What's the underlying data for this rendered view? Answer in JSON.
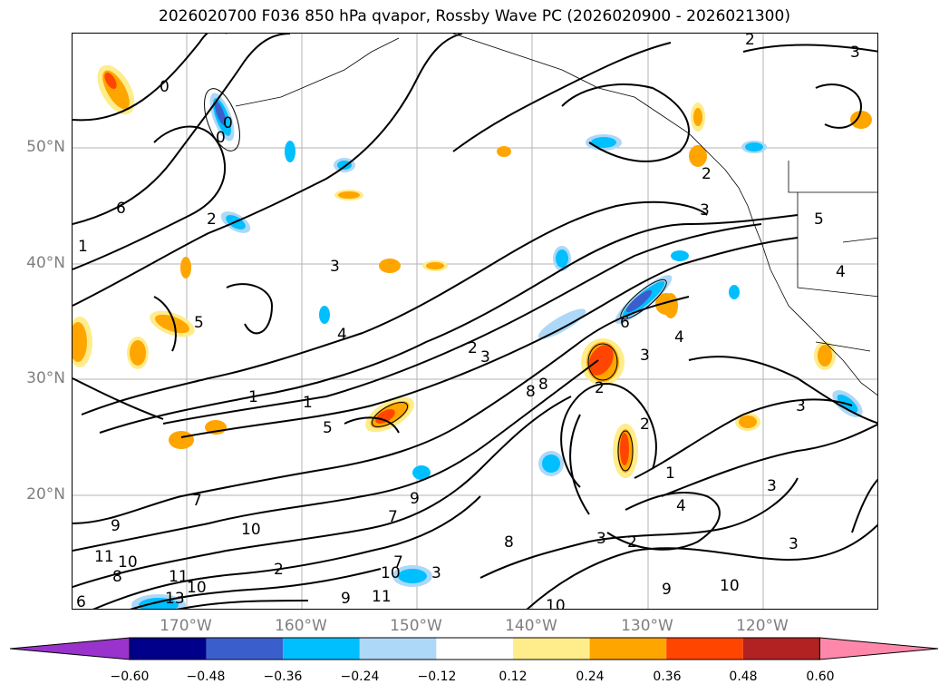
{
  "title": "2026020700 F036 850 hPa qvapor, Rossby Wave PC (2026020900 - 2026021300)",
  "latitude_labels": [
    "50°N",
    "40°N",
    "30°N",
    "20°N"
  ],
  "longitude_labels": [
    "170°W",
    "160°W",
    "150°W",
    "140°W",
    "130°W",
    "120°W"
  ],
  "colorbar": {
    "ticks": [
      "−0.60",
      "−0.48",
      "−0.36",
      "−0.24",
      "−0.12",
      "0.12",
      "0.24",
      "0.36",
      "0.48",
      "0.60"
    ],
    "colors": [
      "#9933cc",
      "#00008b",
      "#3a5fcd",
      "#00bfff",
      "#add8f7",
      "#ffffff",
      "#ffec8b",
      "#ffa500",
      "#ff4500",
      "#b22222",
      "#ff88aa"
    ]
  },
  "contour_labels": [
    "0",
    "0",
    "0",
    "2",
    "6",
    "1",
    "3",
    "5",
    "4",
    "2",
    "3",
    "1",
    "1",
    "5",
    "8",
    "8",
    "2",
    "6",
    "3",
    "4",
    "2",
    "1",
    "3",
    "4",
    "3",
    "2",
    "7",
    "9",
    "10",
    "11",
    "10",
    "8",
    "11",
    "10",
    "13",
    "6",
    "9",
    "10",
    "11",
    "9",
    "7",
    "8",
    "3",
    "2",
    "7",
    "10",
    "10",
    "9",
    "3",
    "2",
    "3",
    "5",
    "4",
    "2",
    "3",
    "3"
  ]
}
